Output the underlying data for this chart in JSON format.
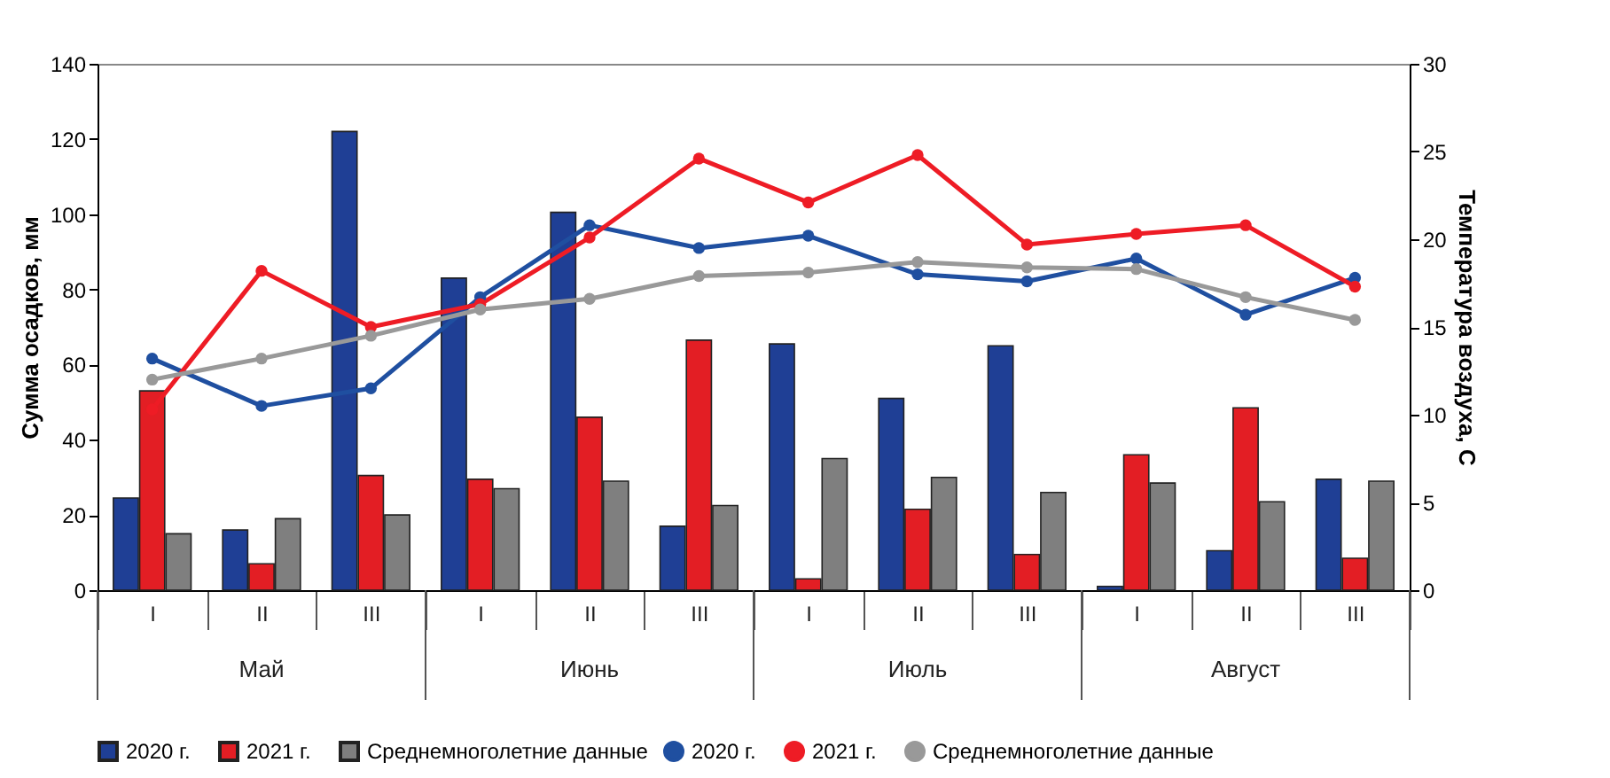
{
  "chart_data": {
    "type": "bar",
    "categories": [
      "I",
      "II",
      "III",
      "I",
      "II",
      "III",
      "I",
      "II",
      "III",
      "I",
      "II",
      "III"
    ],
    "ylabel": "Сумма осадков, мм",
    "y2label": "Температура воздуха, С",
    "ylim": [
      0,
      140
    ],
    "yticks": [
      0,
      20,
      40,
      60,
      80,
      100,
      120,
      140
    ],
    "y2lim": [
      0,
      30
    ],
    "y2ticks": [
      0,
      5,
      10,
      15,
      20,
      25,
      30
    ],
    "annotations": [
      "Май",
      "Июнь",
      "Июль",
      "Август"
    ],
    "legend": "bottom",
    "grid": false,
    "marker": "circle",
    "series": [
      {
        "name": "2020 г.",
        "color": "#1f3f95",
        "values": [
          24.5,
          16,
          122,
          83,
          100.5,
          17,
          65.5,
          51,
          65,
          1,
          10.5,
          29.5
        ]
      },
      {
        "name": "2021 г.",
        "color": "#e31e24",
        "values": [
          53,
          7,
          30.5,
          29.5,
          46,
          66.5,
          3,
          21.5,
          9.5,
          36,
          48.5,
          8.5
        ]
      },
      {
        "name": "Среднемноголетние данные",
        "color": "#7f7f7f",
        "values": [
          15,
          19,
          20,
          27,
          29,
          22.5,
          35,
          30,
          26,
          28.5,
          23.5,
          29
        ]
      },
      {
        "name": "2020 г.",
        "type": "line",
        "axis": "y2",
        "color": "#1f4fa0",
        "values": [
          13.2,
          10.5,
          11.5,
          16.7,
          20.8,
          19.5,
          20.2,
          18.0,
          17.6,
          18.9,
          15.7,
          17.8
        ]
      },
      {
        "name": "2021 г.",
        "type": "line",
        "axis": "y2",
        "color": "#ee1c25",
        "values": [
          10.3,
          18.2,
          15.0,
          16.3,
          20.1,
          24.6,
          22.1,
          24.8,
          19.7,
          20.3,
          20.8,
          17.3
        ]
      },
      {
        "name": "Среднемноголетние данные",
        "type": "line",
        "axis": "y2",
        "color": "#999999",
        "values": [
          12.0,
          13.2,
          14.5,
          16.0,
          16.6,
          17.9,
          18.1,
          18.7,
          18.4,
          18.3,
          16.7,
          15.4
        ]
      }
    ]
  }
}
